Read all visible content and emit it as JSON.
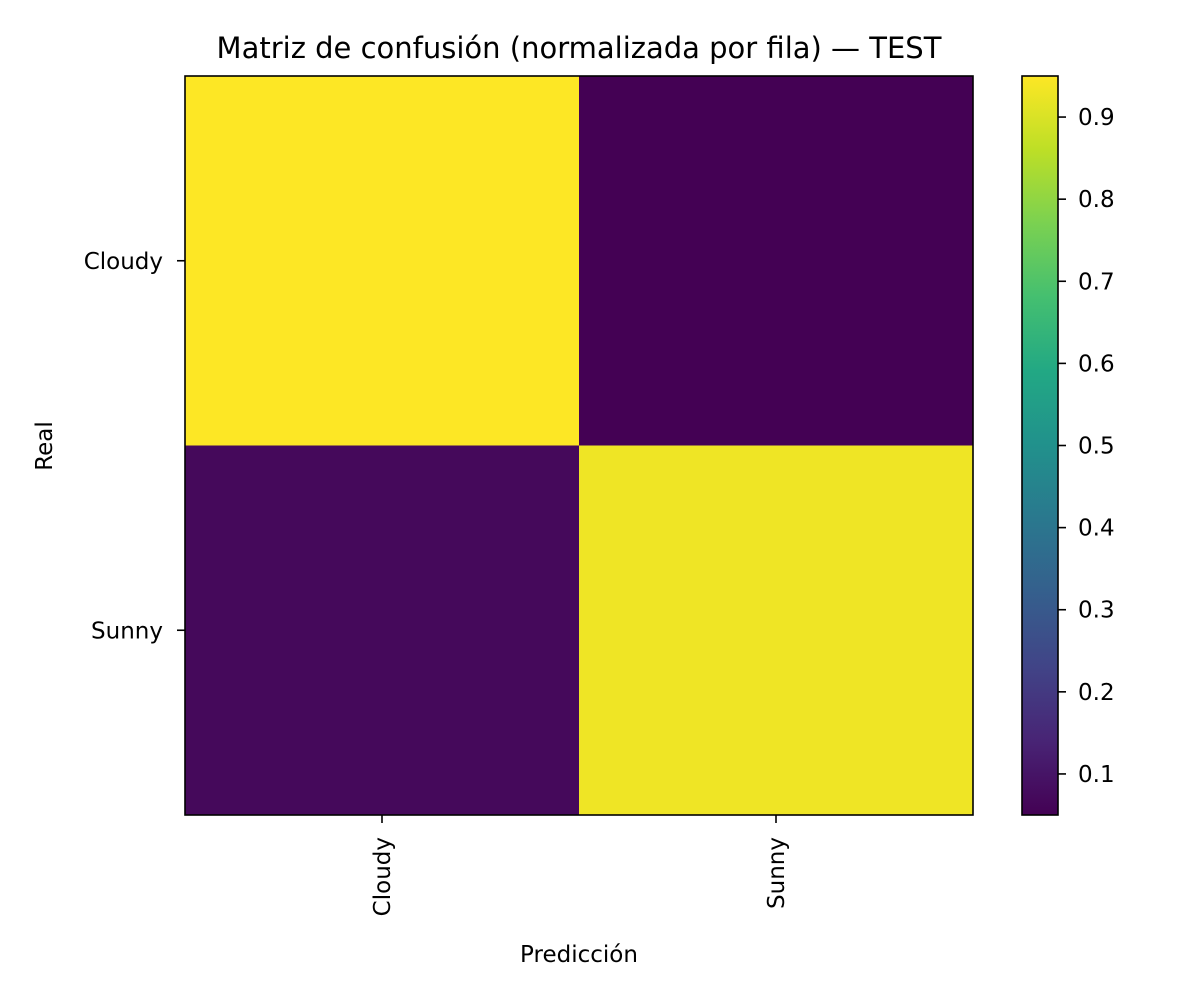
{
  "chart_data": {
    "type": "heatmap",
    "title": "Matriz de confusión (normalizada por fila) — TEST",
    "xlabel": "Predicción",
    "ylabel": "Real",
    "x_categories": [
      "Cloudy",
      "Sunny"
    ],
    "y_categories": [
      "Cloudy",
      "Sunny"
    ],
    "values": [
      [
        0.95,
        0.05
      ],
      [
        0.07,
        0.93
      ]
    ],
    "colorbar": {
      "range": [
        0.05,
        0.95
      ],
      "ticks": [
        0.1,
        0.2,
        0.3,
        0.4,
        0.5,
        0.6,
        0.7,
        0.8,
        0.9
      ],
      "tick_labels": [
        "0.1",
        "0.2",
        "0.3",
        "0.4",
        "0.5",
        "0.6",
        "0.7",
        "0.8",
        "0.9"
      ],
      "colormap": "viridis"
    },
    "grid": false,
    "legend": "colorbar-right"
  }
}
